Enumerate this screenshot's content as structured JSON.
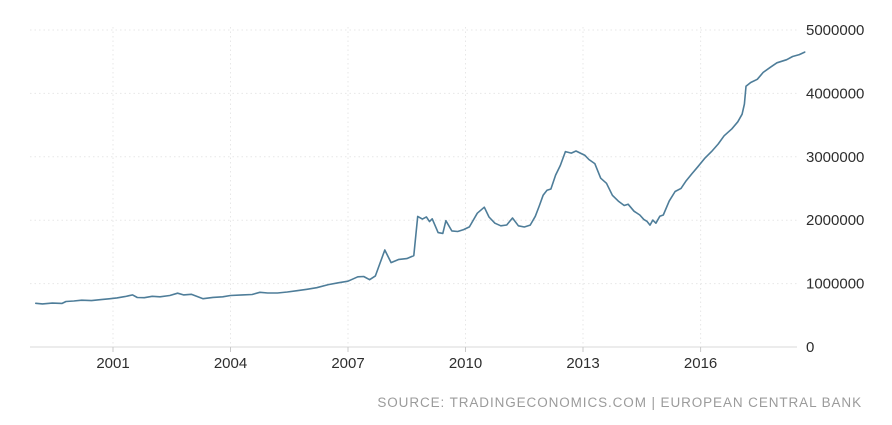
{
  "source_line": "SOURCE: TRADINGECONOMICS.COM | EUROPEAN CENTRAL BANK",
  "colors": {
    "line": "#4e7d99",
    "grid": "#e7e7e7",
    "axis": "#d9d9d9",
    "tick_mark": "#c8c8c8",
    "tick_text": "#2e2e2e",
    "source_text": "#9b9b9b",
    "background": "#ffffff"
  },
  "chart_data": {
    "type": "line",
    "title": "",
    "xlabel": "",
    "ylabel": "",
    "legend": "none",
    "grid": true,
    "grid_style": "dotted",
    "x_ticks": [
      2001,
      2004,
      2007,
      2010,
      2013,
      2016
    ],
    "y_ticks": [
      0,
      1000000,
      2000000,
      3000000,
      4000000,
      5000000
    ],
    "x_range": [
      1998.85,
      2018.75
    ],
    "y_range": [
      0,
      5000000
    ],
    "series": [
      {
        "x": [
          1999.03,
          1999.2,
          1999.45,
          1999.7,
          1999.8,
          2000.0,
          2000.2,
          2000.45,
          2000.7,
          2000.9,
          2001.1,
          2001.3,
          2001.5,
          2001.62,
          2001.8,
          2002.0,
          2002.2,
          2002.45,
          2002.65,
          2002.8,
          2003.0,
          2003.3,
          2003.55,
          2003.8,
          2004.0,
          2004.3,
          2004.55,
          2004.75,
          2004.95,
          2005.2,
          2005.45,
          2005.7,
          2005.95,
          2006.2,
          2006.5,
          2006.75,
          2007.0,
          2007.25,
          2007.4,
          2007.55,
          2007.7,
          2007.94,
          2008.1,
          2008.3,
          2008.5,
          2008.68,
          2008.78,
          2008.9,
          2009.0,
          2009.08,
          2009.15,
          2009.3,
          2009.42,
          2009.5,
          2009.65,
          2009.8,
          2009.95,
          2010.1,
          2010.3,
          2010.48,
          2010.6,
          2010.75,
          2010.9,
          2011.05,
          2011.2,
          2011.35,
          2011.5,
          2011.65,
          2011.78,
          2011.88,
          2011.98,
          2012.08,
          2012.18,
          2012.3,
          2012.42,
          2012.55,
          2012.7,
          2012.82,
          2012.95,
          2013.05,
          2013.15,
          2013.3,
          2013.45,
          2013.6,
          2013.75,
          2013.9,
          2014.05,
          2014.15,
          2014.3,
          2014.45,
          2014.55,
          2014.63,
          2014.71,
          2014.78,
          2014.86,
          2014.96,
          2015.05,
          2015.2,
          2015.35,
          2015.5,
          2015.62,
          2015.78,
          2015.93,
          2016.1,
          2016.28,
          2016.45,
          2016.6,
          2016.8,
          2016.95,
          2017.06,
          2017.12,
          2017.16,
          2017.28,
          2017.45,
          2017.6,
          2017.78,
          2017.95,
          2018.2,
          2018.35,
          2018.52,
          2018.66
        ],
        "values": [
          690000,
          680000,
          692000,
          688000,
          718000,
          725000,
          738000,
          732000,
          748000,
          760000,
          775000,
          795000,
          822000,
          780000,
          778000,
          800000,
          792000,
          812000,
          848000,
          822000,
          832000,
          762000,
          782000,
          792000,
          812000,
          822000,
          828000,
          862000,
          852000,
          852000,
          868000,
          888000,
          910000,
          935000,
          985000,
          1012000,
          1038000,
          1108000,
          1112000,
          1062000,
          1122000,
          1530000,
          1332000,
          1382000,
          1395000,
          1442000,
          2060000,
          2018000,
          2052000,
          1978000,
          2022000,
          1805000,
          1792000,
          1992000,
          1832000,
          1822000,
          1852000,
          1895000,
          2110000,
          2205000,
          2050000,
          1952000,
          1912000,
          1925000,
          2035000,
          1912000,
          1892000,
          1922000,
          2062000,
          2222000,
          2392000,
          2472000,
          2492000,
          2712000,
          2862000,
          3082000,
          3058000,
          3092000,
          3052000,
          3022000,
          2958000,
          2892000,
          2662000,
          2582000,
          2392000,
          2302000,
          2232000,
          2252000,
          2142000,
          2082000,
          2012000,
          1982000,
          1922000,
          2002000,
          1952000,
          2062000,
          2082000,
          2302000,
          2452000,
          2502000,
          2612000,
          2732000,
          2842000,
          2972000,
          3082000,
          3202000,
          3332000,
          3442000,
          3552000,
          3672000,
          3832000,
          4112000,
          4172000,
          4222000,
          4332000,
          4412000,
          4482000,
          4532000,
          4582000,
          4612000,
          4652000
        ]
      }
    ]
  }
}
